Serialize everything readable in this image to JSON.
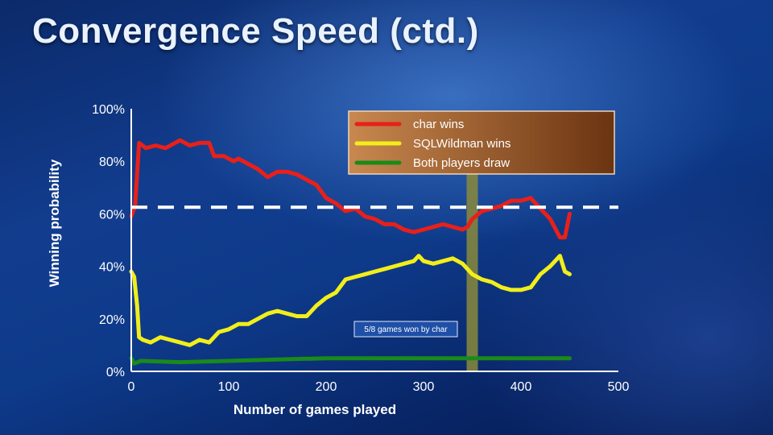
{
  "slide": {
    "title": "Convergence Speed (ctd.)"
  },
  "chart_data": {
    "type": "line",
    "xlabel": "Number of games played",
    "ylabel": "Winning probability",
    "xlim": [
      0,
      500
    ],
    "ylim": [
      0,
      100
    ],
    "x_ticks": [
      "0",
      "100",
      "200",
      "300",
      "400",
      "500"
    ],
    "y_ticks": [
      "0%",
      "20%",
      "40%",
      "60%",
      "80%",
      "100%"
    ],
    "grid": false,
    "legend_position": "top-center",
    "reference_line": {
      "y": 62.5,
      "style": "dashed",
      "color": "#ffffff"
    },
    "highlight": {
      "x": 350,
      "label": "5/8 games won by char"
    },
    "series": [
      {
        "name": "char wins",
        "color": "#e8201a",
        "x": [
          0,
          4,
          8,
          15,
          25,
          35,
          45,
          50,
          60,
          70,
          80,
          85,
          95,
          105,
          110,
          120,
          130,
          140,
          150,
          160,
          170,
          180,
          190,
          200,
          210,
          220,
          230,
          240,
          250,
          260,
          270,
          280,
          290,
          300,
          310,
          320,
          330,
          340,
          345,
          350,
          360,
          370,
          380,
          390,
          400,
          410,
          415,
          425,
          430,
          440,
          445,
          450
        ],
        "y": [
          59,
          63,
          87,
          85,
          86,
          85,
          87,
          88,
          86,
          87,
          87,
          82,
          82,
          80,
          81,
          79,
          77,
          74,
          76,
          76,
          75,
          73,
          71,
          66,
          64,
          61,
          62,
          59,
          58,
          56,
          56,
          54,
          53,
          54,
          55,
          56,
          55,
          54,
          55,
          58,
          61,
          62,
          63,
          65,
          65,
          66,
          64,
          60,
          58,
          51,
          51,
          60
        ]
      },
      {
        "name": "SQLWildman wins",
        "color": "#f2ee1a",
        "x": [
          0,
          3,
          6,
          8,
          12,
          20,
          30,
          40,
          50,
          60,
          70,
          80,
          90,
          100,
          110,
          120,
          130,
          140,
          150,
          160,
          170,
          180,
          190,
          200,
          210,
          220,
          230,
          240,
          250,
          260,
          270,
          280,
          290,
          295,
          300,
          310,
          320,
          330,
          340,
          345,
          350,
          360,
          370,
          380,
          390,
          400,
          410,
          420,
          430,
          440,
          445,
          450
        ],
        "y": [
          38,
          36,
          25,
          13,
          12,
          11,
          13,
          12,
          11,
          10,
          12,
          11,
          15,
          16,
          18,
          18,
          20,
          22,
          23,
          22,
          21,
          21,
          25,
          28,
          30,
          35,
          36,
          37,
          38,
          39,
          40,
          41,
          42,
          44,
          42,
          41,
          42,
          43,
          41,
          39,
          37,
          35,
          34,
          32,
          31,
          31,
          32,
          37,
          40,
          44,
          38,
          37
        ]
      },
      {
        "name": "Both players draw",
        "color": "#1a8a1a",
        "x": [
          0,
          3,
          10,
          50,
          100,
          150,
          200,
          250,
          300,
          350,
          400,
          450
        ],
        "y": [
          5,
          3,
          4,
          3.5,
          4,
          4.5,
          5,
          5,
          5,
          5,
          5,
          5
        ]
      }
    ]
  }
}
